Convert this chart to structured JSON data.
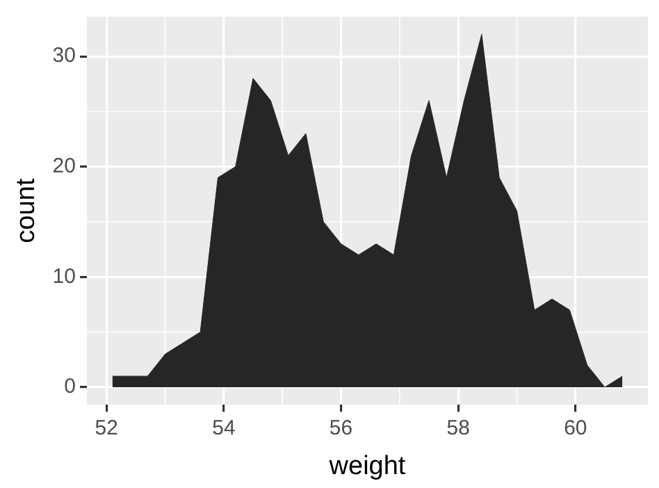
{
  "chart_data": {
    "type": "area",
    "xlabel": "weight",
    "ylabel": "count",
    "x": [
      52.1,
      52.4,
      52.7,
      53.0,
      53.3,
      53.6,
      53.9,
      54.2,
      54.5,
      54.8,
      55.1,
      55.4,
      55.7,
      56.0,
      56.3,
      56.6,
      56.9,
      57.2,
      57.5,
      57.8,
      58.1,
      58.4,
      58.7,
      59.0,
      59.3,
      59.6,
      59.9,
      60.2,
      60.5,
      60.8
    ],
    "series": [
      {
        "color": "#262626",
        "values": [
          1,
          1,
          1,
          3,
          4,
          5,
          19,
          20,
          28,
          26,
          21,
          23,
          15,
          13,
          12,
          13,
          12,
          21,
          26,
          19,
          26,
          32,
          19,
          16,
          7,
          8,
          7,
          2,
          0,
          1
        ]
      }
    ],
    "xlim": [
      51.665,
      61.235
    ],
    "ylim": [
      -1.6,
      33.6
    ],
    "xticks": [
      52,
      54,
      56,
      58,
      60
    ],
    "yticks": [
      0,
      10,
      20,
      30
    ],
    "grid": true,
    "legend": false,
    "marker": "none"
  }
}
